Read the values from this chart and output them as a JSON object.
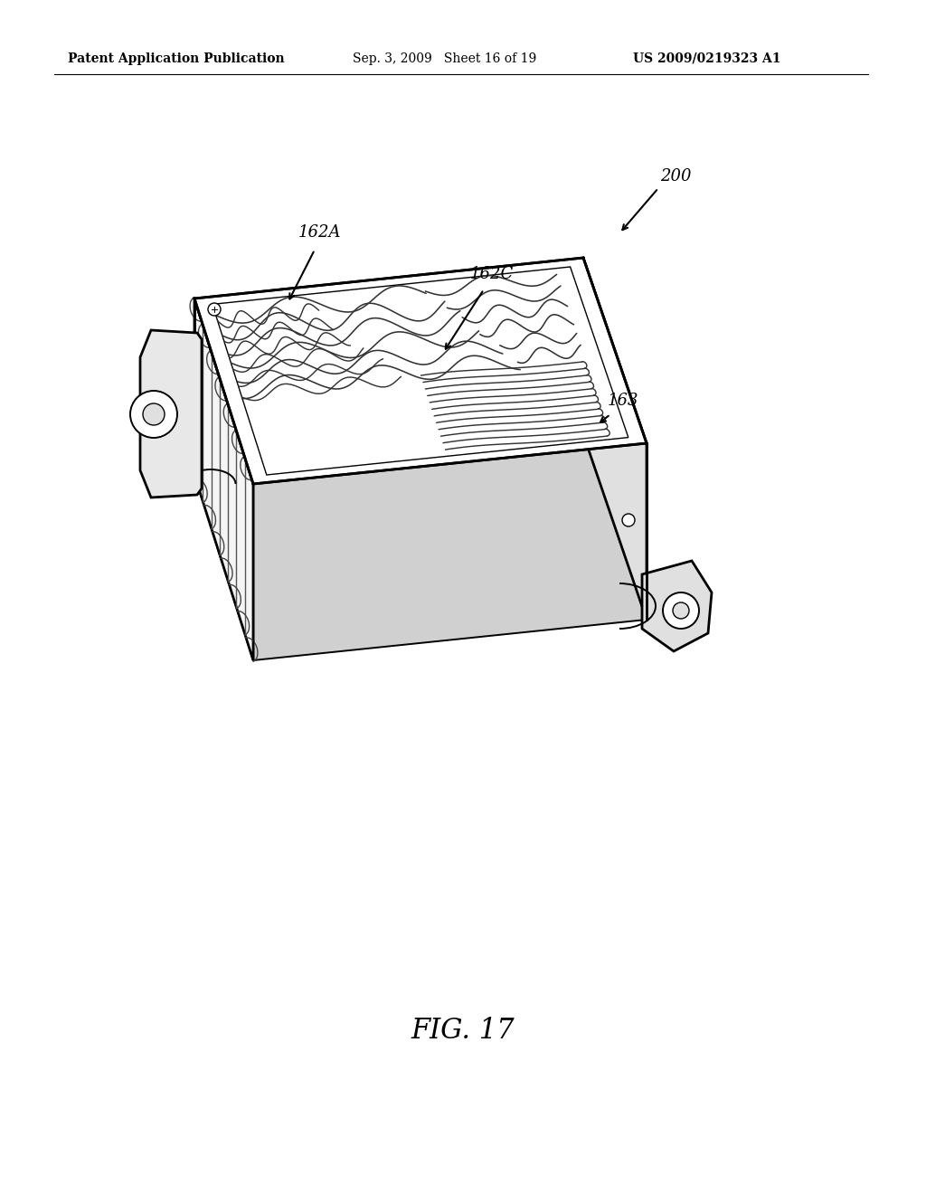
{
  "header_left": "Patent Application Publication",
  "header_mid": "Sep. 3, 2009   Sheet 16 of 19",
  "header_right": "US 2009/0219323 A1",
  "fig_caption": "FIG. 17",
  "label_200": "200",
  "label_162A": "162A",
  "label_162C": "162C",
  "label_163": "163",
  "bg_color": "#ffffff",
  "line_color": "#000000",
  "header_fontsize": 10,
  "label_fontsize": 13,
  "caption_fontsize": 22
}
